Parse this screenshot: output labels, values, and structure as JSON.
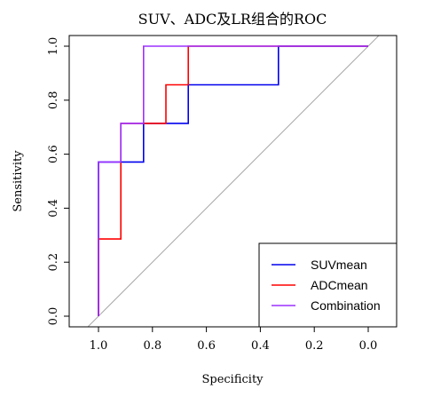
{
  "chart_data": {
    "type": "line",
    "title": "SUV、ADC及LR组合的ROC",
    "xlabel": "Specificity",
    "ylabel": "Sensitivity",
    "xlim": [
      1.1,
      -0.1
    ],
    "ylim": [
      0,
      1
    ],
    "x_reversed": true,
    "xticks": [
      1.0,
      0.8,
      0.6,
      0.4,
      0.2,
      0.0
    ],
    "xtick_labels": [
      "1.0",
      "0.8",
      "0.6",
      "0.4",
      "0.2",
      "0.0"
    ],
    "yticks": [
      0.0,
      0.2,
      0.4,
      0.6,
      0.8,
      1.0
    ],
    "ytick_labels": [
      "0.0",
      "0.2",
      "0.4",
      "0.6",
      "0.8",
      "1.0"
    ],
    "grid": false,
    "legend_position": "bottom-right",
    "reference_line": {
      "from": [
        1.0,
        0.0
      ],
      "to": [
        0.0,
        1.0
      ],
      "color": "#a8a8a8"
    },
    "series": [
      {
        "name": "SUVmean",
        "color": "#0000ee",
        "points": [
          [
            1.0,
            0.0
          ],
          [
            1.0,
            0.571
          ],
          [
            0.833,
            0.571
          ],
          [
            0.833,
            0.714
          ],
          [
            0.667,
            0.714
          ],
          [
            0.667,
            0.857
          ],
          [
            0.333,
            0.857
          ],
          [
            0.333,
            1.0
          ],
          [
            0.0,
            1.0
          ]
        ]
      },
      {
        "name": "ADCmean",
        "color": "#ff0000",
        "points": [
          [
            1.0,
            0.0
          ],
          [
            1.0,
            0.286
          ],
          [
            0.917,
            0.286
          ],
          [
            0.917,
            0.714
          ],
          [
            0.75,
            0.714
          ],
          [
            0.75,
            0.857
          ],
          [
            0.667,
            0.857
          ],
          [
            0.667,
            1.0
          ],
          [
            0.0,
            1.0
          ]
        ]
      },
      {
        "name": "Combination",
        "color": "#9b30ff",
        "points": [
          [
            1.0,
            0.0
          ],
          [
            1.0,
            0.571
          ],
          [
            0.917,
            0.571
          ],
          [
            0.917,
            0.714
          ],
          [
            0.833,
            0.714
          ],
          [
            0.833,
            1.0
          ],
          [
            0.0,
            1.0
          ]
        ]
      }
    ]
  }
}
